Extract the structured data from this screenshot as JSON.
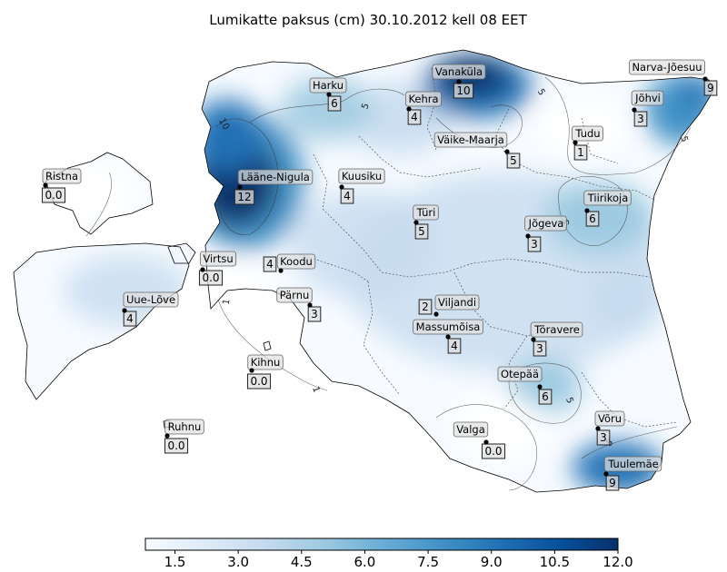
{
  "title": "Lumikatte paksus (cm) 30.10.2012 kell 08 EET",
  "colorbar": {
    "min": 0.8,
    "max": 12.0,
    "ticks": [
      "1.5",
      "3.0",
      "4.5",
      "6.0",
      "7.5",
      "9.0",
      "10.5",
      "12.0"
    ],
    "colors": [
      "#f7fbff",
      "#deebf7",
      "#c6dbef",
      "#9ecae1",
      "#6baed6",
      "#4292c6",
      "#2171b5",
      "#08519c",
      "#08306b"
    ]
  },
  "contour_labels": [
    "10",
    "5",
    "5",
    "5",
    "5",
    "5",
    "1",
    "1",
    "5"
  ],
  "stations": [
    {
      "name": "Vanaküla",
      "value": "10"
    },
    {
      "name": "Narva-Jõesuu",
      "value": "9"
    },
    {
      "name": "Harku",
      "value": "6"
    },
    {
      "name": "Kehra",
      "value": "4"
    },
    {
      "name": "Jõhvi",
      "value": "3"
    },
    {
      "name": "Tudu",
      "value": "1"
    },
    {
      "name": "Väike-Maarja",
      "value": "5"
    },
    {
      "name": "Ristna",
      "value": "0.0"
    },
    {
      "name": "Lääne-Nigula",
      "value": "12"
    },
    {
      "name": "Kuusiku",
      "value": "4"
    },
    {
      "name": "Tiirikoja",
      "value": "6"
    },
    {
      "name": "Türi",
      "value": "5"
    },
    {
      "name": "Jõgeva",
      "value": "3"
    },
    {
      "name": "Virtsu",
      "value": "0.0"
    },
    {
      "name": "Koodu",
      "value": "4"
    },
    {
      "name": "Pärnu",
      "value": "3"
    },
    {
      "name": "Viljandi",
      "value": "2"
    },
    {
      "name": "Uue-Lõve",
      "value": "4"
    },
    {
      "name": "Massumõisa",
      "value": "4"
    },
    {
      "name": "Tõravere",
      "value": "3"
    },
    {
      "name": "Kihnu",
      "value": "0.0"
    },
    {
      "name": "Otepää",
      "value": "6"
    },
    {
      "name": "Võru",
      "value": "3"
    },
    {
      "name": "Ruhnu",
      "value": "0.0"
    },
    {
      "name": "Valga",
      "value": "0.0"
    },
    {
      "name": "Tuulemäe",
      "value": "9"
    }
  ]
}
